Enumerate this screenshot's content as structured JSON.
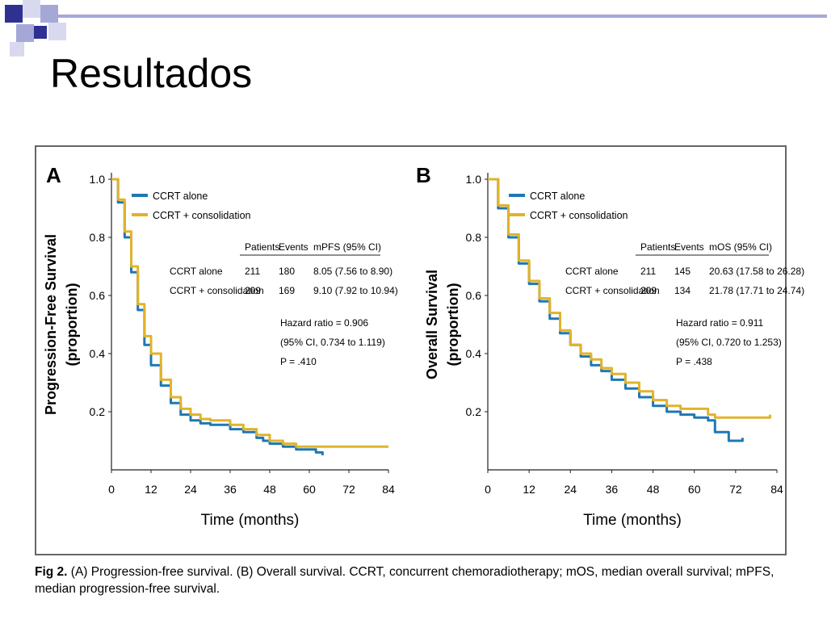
{
  "slide": {
    "title": "Resultados",
    "deco_colors": {
      "navy": "#2e3192",
      "lavender": "#a5a8d6",
      "light": "#d8d9ee"
    }
  },
  "caption": {
    "label": "Fig 2.",
    "text": "(A) Progression-free survival. (B) Overall survival. CCRT, concurrent chemoradiotherapy; mOS, median overall survival; mPFS, median progression-free survival."
  },
  "colors": {
    "ccrt_alone": "#1f78b4",
    "consolidation": "#e0b32a"
  },
  "chart_data": [
    {
      "type": "line",
      "panel": "A",
      "ylabel": "Progression-Free Survival (proportion)",
      "xlabel": "Time (months)",
      "xlim": [
        0,
        84
      ],
      "ylim": [
        0,
        1.0
      ],
      "xticks": [
        0,
        12,
        24,
        36,
        48,
        60,
        72,
        84
      ],
      "yticks": [
        0.2,
        0.4,
        0.6,
        0.8,
        1.0
      ],
      "ytick_labels": [
        "0.2",
        "0.4",
        "0.6",
        "0.8",
        "1.0"
      ],
      "legend": [
        "CCRT alone",
        "CCRT + consolidation"
      ],
      "table": {
        "headers": [
          "Patients",
          "Events",
          "mPFS (95% CI)"
        ],
        "rows": [
          [
            "CCRT alone",
            "211",
            "180",
            "8.05 (7.56 to 8.90)"
          ],
          [
            "CCRT + consolidation",
            "209",
            "169",
            "9.10 (7.92 to 10.94)"
          ]
        ]
      },
      "annotations": [
        "Hazard ratio = 0.906",
        "(95% CI, 0.734 to 1.119)",
        "P = .410"
      ],
      "series": [
        {
          "name": "CCRT alone",
          "x": [
            0,
            2,
            4,
            6,
            8,
            10,
            12,
            15,
            18,
            21,
            24,
            27,
            30,
            36,
            40,
            44,
            46,
            48,
            52,
            56,
            60,
            62,
            64
          ],
          "y": [
            1.0,
            0.92,
            0.8,
            0.68,
            0.55,
            0.43,
            0.36,
            0.29,
            0.23,
            0.19,
            0.17,
            0.16,
            0.155,
            0.14,
            0.13,
            0.11,
            0.1,
            0.09,
            0.08,
            0.07,
            0.07,
            0.06,
            0.05
          ]
        },
        {
          "name": "CCRT + consolidation",
          "x": [
            0,
            2,
            4,
            6,
            8,
            10,
            12,
            15,
            18,
            21,
            24,
            27,
            30,
            36,
            40,
            44,
            48,
            52,
            56,
            60,
            70,
            80,
            84
          ],
          "y": [
            1.0,
            0.93,
            0.82,
            0.7,
            0.57,
            0.46,
            0.4,
            0.31,
            0.25,
            0.21,
            0.19,
            0.175,
            0.17,
            0.155,
            0.14,
            0.12,
            0.1,
            0.09,
            0.08,
            0.08,
            0.08,
            0.08,
            0.08
          ]
        }
      ]
    },
    {
      "type": "line",
      "panel": "B",
      "ylabel": "Overall Survival (proportion)",
      "xlabel": "Time (months)",
      "xlim": [
        0,
        84
      ],
      "ylim": [
        0,
        1.0
      ],
      "xticks": [
        0,
        12,
        24,
        36,
        48,
        60,
        72,
        84
      ],
      "yticks": [
        0.2,
        0.4,
        0.6,
        0.8,
        1.0
      ],
      "ytick_labels": [
        "0.2",
        "0.4",
        "0.6",
        "0.8",
        "1.0"
      ],
      "legend": [
        "CCRT alone",
        "CCRT + consolidation"
      ],
      "table": {
        "headers": [
          "Patients",
          "Events",
          "mOS (95% CI)"
        ],
        "rows": [
          [
            "CCRT alone",
            "211",
            "145",
            "20.63 (17.58 to 26.28)"
          ],
          [
            "CCRT + consolidation",
            "209",
            "134",
            "21.78 (17.71 to 24.74)"
          ]
        ]
      },
      "annotations": [
        "Hazard ratio = 0.911",
        "(95% CI, 0.720 to 1.253)",
        "P = .438"
      ],
      "series": [
        {
          "name": "CCRT alone",
          "x": [
            0,
            3,
            6,
            9,
            12,
            15,
            18,
            21,
            24,
            27,
            30,
            33,
            36,
            40,
            44,
            48,
            52,
            56,
            60,
            64,
            66,
            68,
            70,
            72,
            74
          ],
          "y": [
            1.0,
            0.9,
            0.8,
            0.71,
            0.64,
            0.58,
            0.52,
            0.47,
            0.43,
            0.39,
            0.36,
            0.34,
            0.31,
            0.28,
            0.25,
            0.22,
            0.2,
            0.19,
            0.18,
            0.17,
            0.13,
            0.13,
            0.1,
            0.1,
            0.11
          ]
        },
        {
          "name": "CCRT + consolidation",
          "x": [
            0,
            3,
            6,
            9,
            12,
            15,
            18,
            21,
            24,
            27,
            30,
            33,
            36,
            40,
            44,
            48,
            52,
            56,
            60,
            64,
            66,
            70,
            76,
            82
          ],
          "y": [
            1.0,
            0.91,
            0.81,
            0.72,
            0.65,
            0.59,
            0.54,
            0.48,
            0.43,
            0.4,
            0.38,
            0.35,
            0.33,
            0.3,
            0.27,
            0.24,
            0.22,
            0.21,
            0.21,
            0.19,
            0.18,
            0.18,
            0.18,
            0.19
          ]
        }
      ]
    }
  ]
}
